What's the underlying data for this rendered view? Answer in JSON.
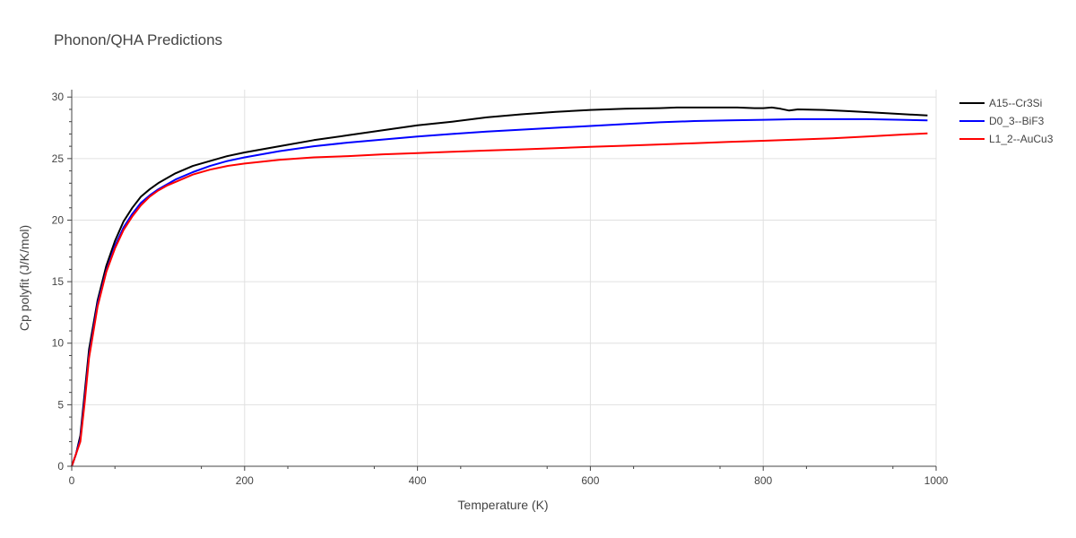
{
  "chart_data": {
    "type": "line",
    "title": "Phonon/QHA Predictions",
    "xlabel": "Temperature (K)",
    "ylabel": "Cp polyfit (J/K/mol)",
    "xlim": [
      0,
      1000
    ],
    "ylim": [
      0,
      30.6
    ],
    "xticks": [
      0,
      200,
      400,
      600,
      800,
      1000
    ],
    "yticks": [
      0,
      5,
      10,
      15,
      20,
      25,
      30
    ],
    "grid": true,
    "legend_position": "top-right",
    "series": [
      {
        "name": "A15--Cr3Si",
        "color": "#000000",
        "x": [
          0,
          5,
          10,
          15,
          20,
          30,
          40,
          50,
          60,
          70,
          80,
          90,
          100,
          110,
          120,
          140,
          160,
          180,
          200,
          240,
          280,
          320,
          360,
          400,
          440,
          480,
          520,
          560,
          600,
          640,
          680,
          700,
          740,
          770,
          790,
          800,
          810,
          820,
          830,
          840,
          870,
          900,
          940,
          990
        ],
        "y": [
          0,
          1,
          2.5,
          6,
          9.5,
          13.5,
          16.3,
          18.3,
          19.9,
          21.0,
          21.9,
          22.5,
          23.0,
          23.4,
          23.8,
          24.4,
          24.8,
          25.2,
          25.5,
          26.0,
          26.5,
          26.9,
          27.3,
          27.7,
          28.0,
          28.35,
          28.6,
          28.8,
          28.95,
          29.05,
          29.1,
          29.15,
          29.15,
          29.15,
          29.1,
          29.1,
          29.15,
          29.05,
          28.9,
          29.0,
          28.95,
          28.85,
          28.7,
          28.5
        ]
      },
      {
        "name": "D0_3--BiF3",
        "color": "#0000ff",
        "x": [
          0,
          5,
          10,
          15,
          20,
          30,
          40,
          50,
          60,
          70,
          80,
          90,
          100,
          110,
          120,
          140,
          160,
          180,
          200,
          240,
          280,
          320,
          360,
          400,
          440,
          480,
          520,
          560,
          600,
          640,
          680,
          720,
          760,
          800,
          840,
          880,
          920,
          960,
          990
        ],
        "y": [
          0,
          1,
          2.2,
          5.5,
          9,
          13.2,
          15.9,
          17.9,
          19.4,
          20.5,
          21.4,
          22.0,
          22.5,
          22.9,
          23.3,
          23.9,
          24.4,
          24.8,
          25.1,
          25.6,
          26.0,
          26.3,
          26.55,
          26.8,
          27.0,
          27.2,
          27.35,
          27.5,
          27.65,
          27.8,
          27.95,
          28.05,
          28.1,
          28.15,
          28.2,
          28.2,
          28.2,
          28.15,
          28.1
        ]
      },
      {
        "name": "L1_2--AuCu3",
        "color": "#ff0000",
        "x": [
          0,
          5,
          10,
          15,
          20,
          30,
          40,
          50,
          60,
          70,
          80,
          90,
          100,
          110,
          120,
          140,
          160,
          180,
          200,
          240,
          280,
          320,
          360,
          400,
          440,
          480,
          520,
          560,
          600,
          640,
          680,
          720,
          760,
          800,
          840,
          880,
          920,
          960,
          990
        ],
        "y": [
          0,
          1,
          2.0,
          5.2,
          8.8,
          13.0,
          15.8,
          17.7,
          19.2,
          20.3,
          21.2,
          21.9,
          22.4,
          22.8,
          23.1,
          23.7,
          24.1,
          24.4,
          24.6,
          24.9,
          25.1,
          25.2,
          25.35,
          25.45,
          25.55,
          25.65,
          25.75,
          25.85,
          25.95,
          26.05,
          26.15,
          26.25,
          26.35,
          26.45,
          26.55,
          26.65,
          26.8,
          26.95,
          27.05
        ]
      }
    ]
  }
}
